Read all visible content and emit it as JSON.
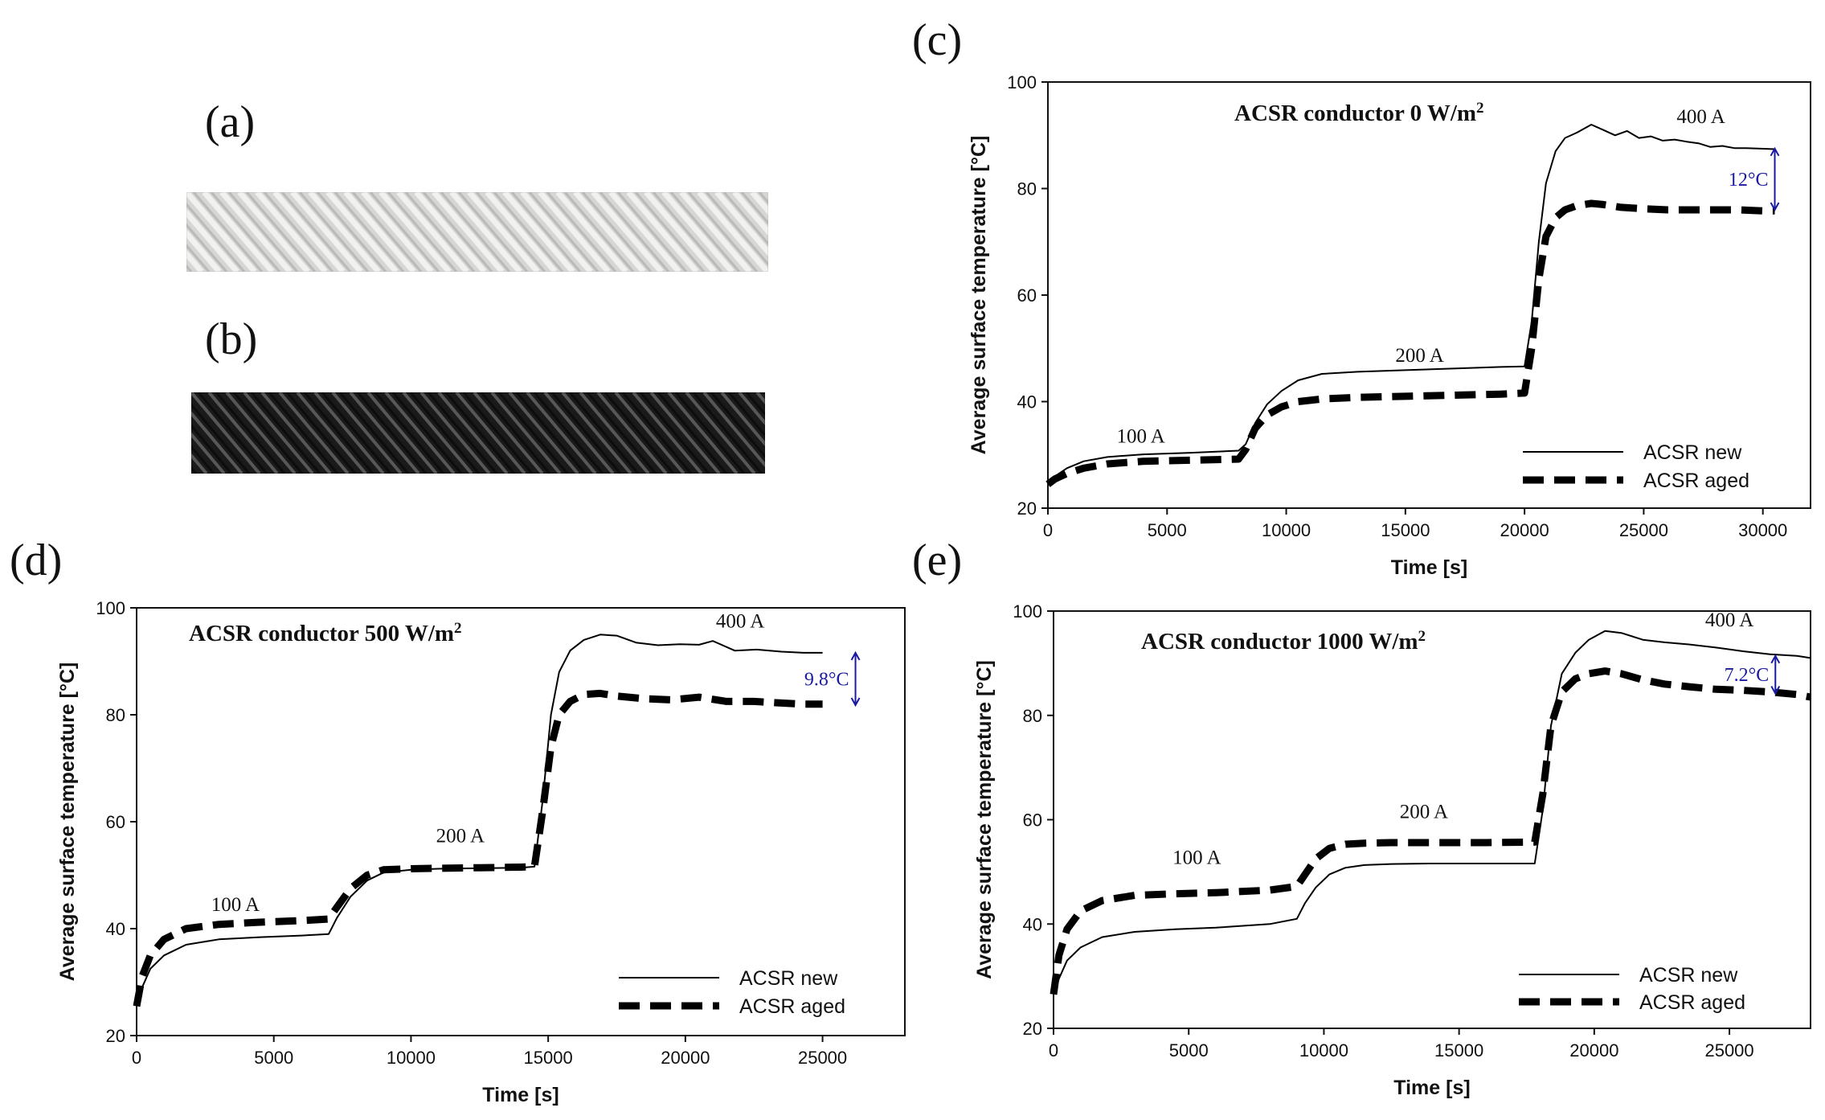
{
  "photos": [
    {
      "label": "(a)",
      "description": "new ACSR conductor",
      "tone": "light",
      "colors": {
        "base": "#d6d6d4",
        "stripe": "#f4f4f2",
        "shadow": "#a9a9a6"
      }
    },
    {
      "label": "(b)",
      "description": "aged ACSR conductor",
      "tone": "dark",
      "colors": {
        "base": "#1a1a1a",
        "stripe": "#8a8a8a",
        "shadow": "#050505"
      }
    }
  ],
  "chart_data": [
    {
      "panel": "(c)",
      "type": "line",
      "title_main": "ACSR conductor  0 W/m",
      "title_sup": "2",
      "xlabel": "Time [s]",
      "ylabel": "Average surface temperature [°C]",
      "xlim": [
        0,
        32000
      ],
      "ylim": [
        20,
        100
      ],
      "xticks": [
        0,
        5000,
        10000,
        15000,
        20000,
        25000,
        30000
      ],
      "yticks": [
        20,
        40,
        60,
        80,
        100
      ],
      "legend": {
        "position": "bottom-right",
        "entries": [
          "ACSR new",
          "ACSR aged"
        ]
      },
      "current_labels": [
        {
          "text": "100 A",
          "x": 3900,
          "y": 32.3
        },
        {
          "text": "200 A",
          "x": 15600,
          "y": 47.5
        },
        {
          "text": "400 A",
          "x": 27400,
          "y": 92.3
        }
      ],
      "delta": {
        "text": "12°C",
        "x": 30500,
        "from": 76,
        "to": 87.5
      },
      "series": [
        {
          "name": "ACSR new",
          "style": "solid",
          "x": [
            0,
            300,
            800,
            1500,
            2500,
            4000,
            6000,
            8000,
            8300,
            8700,
            9200,
            9800,
            10500,
            11500,
            13000,
            15000,
            17000,
            19000,
            20000,
            20300,
            20600,
            20900,
            21300,
            21700,
            22200,
            22800,
            23300,
            23800,
            24300,
            24800,
            25300,
            25800,
            26300,
            26800,
            27300,
            27800,
            28300,
            28800,
            29300,
            29800,
            30500
          ],
          "y": [
            24.5,
            26,
            27.5,
            28.8,
            29.6,
            30.1,
            30.4,
            30.8,
            32,
            36,
            39.5,
            42,
            44,
            45.2,
            45.6,
            45.9,
            46.2,
            46.5,
            46.6,
            55,
            70,
            81,
            87,
            89.5,
            90.5,
            92,
            91,
            90,
            90.8,
            89.5,
            89.8,
            89,
            89.2,
            88.8,
            88.5,
            87.8,
            88,
            87.6,
            87.6,
            87.5,
            87.4
          ]
        },
        {
          "name": "ACSR aged",
          "style": "dashed",
          "x": [
            0,
            300,
            800,
            1500,
            2500,
            4000,
            6000,
            8000,
            8300,
            8700,
            9200,
            9800,
            10500,
            11500,
            13000,
            15000,
            17000,
            19000,
            20000,
            20300,
            20600,
            20900,
            21300,
            21700,
            22200,
            22800,
            23300,
            24000,
            25000,
            26000,
            27000,
            28000,
            29000,
            30000,
            30500
          ],
          "y": [
            24.5,
            25.5,
            26.5,
            27.5,
            28.3,
            28.8,
            29,
            29.2,
            31,
            35,
            37.5,
            39,
            40,
            40.5,
            40.8,
            41,
            41.2,
            41.4,
            41.6,
            50,
            63,
            71,
            74.5,
            76,
            76.8,
            77.2,
            77,
            76.5,
            76.2,
            76,
            76,
            76,
            76,
            75.8,
            75.8
          ]
        }
      ]
    },
    {
      "panel": "(d)",
      "type": "line",
      "title_main": "ACSR conductor  500 W/m",
      "title_sup": "2",
      "xlabel": "Time [s]",
      "ylabel": "Average surface temperature [°C]",
      "xlim": [
        0,
        28000
      ],
      "ylim": [
        20,
        100
      ],
      "xticks": [
        0,
        5000,
        10000,
        15000,
        20000,
        25000
      ],
      "yticks": [
        20,
        40,
        60,
        80,
        100
      ],
      "legend": {
        "position": "bottom-right",
        "entries": [
          "ACSR new",
          "ACSR aged"
        ]
      },
      "current_labels": [
        {
          "text": "100 A",
          "x": 3600,
          "y": 43.3
        },
        {
          "text": "200 A",
          "x": 11800,
          "y": 56.2
        },
        {
          "text": "400 A",
          "x": 22000,
          "y": 96.3
        }
      ],
      "delta": {
        "text": "9.8°C",
        "x": 26200,
        "from": 81.8,
        "to": 91.6
      },
      "series": [
        {
          "name": "ACSR new",
          "style": "solid",
          "x": [
            0,
            200,
            500,
            1000,
            1800,
            3000,
            4500,
            6000,
            7000,
            7300,
            7800,
            8400,
            9000,
            10000,
            11000,
            12500,
            14000,
            14500,
            14800,
            15100,
            15400,
            15800,
            16300,
            16900,
            17500,
            18200,
            19000,
            19800,
            20500,
            21000,
            21800,
            22600,
            23500,
            24300,
            25000
          ],
          "y": [
            25.5,
            29,
            32.5,
            35,
            37,
            38,
            38.4,
            38.7,
            39,
            42,
            46,
            49,
            50.5,
            51,
            51.2,
            51.3,
            51.4,
            51.6,
            64,
            80,
            88,
            92,
            94,
            95,
            94.8,
            93.5,
            93,
            93.2,
            93.1,
            93.8,
            92,
            92.2,
            91.8,
            91.6,
            91.6
          ]
        },
        {
          "name": "ACSR aged",
          "style": "dashed",
          "x": [
            0,
            200,
            500,
            1000,
            1800,
            3000,
            4500,
            6000,
            7000,
            7300,
            7800,
            8400,
            9000,
            10000,
            11000,
            12500,
            14000,
            14500,
            14800,
            15100,
            15400,
            15800,
            16300,
            16900,
            17500,
            18500,
            19500,
            20500,
            21500,
            22500,
            23500,
            24300,
            25000
          ],
          "y": [
            25.5,
            31,
            35,
            38,
            40,
            40.8,
            41.2,
            41.5,
            41.8,
            44,
            47.5,
            50,
            51,
            51.2,
            51.3,
            51.4,
            51.5,
            51.6,
            62,
            74,
            80,
            82.5,
            83.8,
            84,
            83.5,
            83,
            82.8,
            83.3,
            82.5,
            82.5,
            82.2,
            82,
            82
          ]
        }
      ]
    },
    {
      "panel": "(e)",
      "type": "line",
      "title_main": "ACSR conductor  1000 W/m",
      "title_sup": "2",
      "xlabel": "Time [s]",
      "ylabel": "Average surface temperature [°C]",
      "xlim": [
        0,
        28000
      ],
      "ylim": [
        20,
        100
      ],
      "xticks": [
        0,
        5000,
        10000,
        15000,
        20000,
        25000
      ],
      "yticks": [
        20,
        40,
        60,
        80,
        100
      ],
      "legend": {
        "position": "bottom-right",
        "entries": [
          "ACSR new",
          "ACSR aged"
        ]
      },
      "current_labels": [
        {
          "text": "100 A",
          "x": 5300,
          "y": 51.5
        },
        {
          "text": "200 A",
          "x": 13700,
          "y": 60.3
        },
        {
          "text": "400 A",
          "x": 25000,
          "y": 97.1
        }
      ],
      "delta": {
        "text": "7.2°C",
        "x": 26700,
        "from": 84.2,
        "to": 91.4
      },
      "series": [
        {
          "name": "ACSR new",
          "style": "solid",
          "x": [
            0,
            200,
            500,
            1000,
            1800,
            3000,
            4500,
            6000,
            8000,
            9000,
            9300,
            9700,
            10200,
            10800,
            11500,
            12500,
            14000,
            16000,
            17800,
            18100,
            18400,
            18800,
            19300,
            19800,
            20400,
            21000,
            21800,
            22600,
            23500,
            24500,
            25500,
            26500,
            27500,
            28000
          ],
          "y": [
            26.5,
            29.5,
            33,
            35.5,
            37.5,
            38.5,
            39,
            39.3,
            40,
            41,
            44,
            47,
            49.5,
            50.8,
            51.3,
            51.5,
            51.6,
            51.6,
            51.6,
            62,
            78,
            88,
            92,
            94.5,
            96.2,
            95.8,
            94.5,
            94,
            93.6,
            93,
            92.3,
            91.7,
            91.4,
            91
          ]
        },
        {
          "name": "ACSR aged",
          "style": "dashed",
          "x": [
            0,
            200,
            500,
            1000,
            1800,
            3000,
            4500,
            6000,
            8000,
            9000,
            9300,
            9700,
            10200,
            10800,
            11500,
            12500,
            14000,
            16000,
            17800,
            18100,
            18400,
            18800,
            19300,
            19800,
            20400,
            21000,
            21800,
            22600,
            23500,
            24500,
            25500,
            26500,
            27500,
            28000
          ],
          "y": [
            26.5,
            34,
            39,
            42.5,
            44.5,
            45.5,
            45.8,
            46,
            46.5,
            47.2,
            49.5,
            52.5,
            54.5,
            55.3,
            55.5,
            55.6,
            55.6,
            55.6,
            55.7,
            65,
            78,
            84.5,
            87,
            88,
            88.5,
            88,
            86.8,
            86,
            85.5,
            85,
            84.8,
            84.5,
            84,
            83.5
          ]
        }
      ]
    }
  ]
}
